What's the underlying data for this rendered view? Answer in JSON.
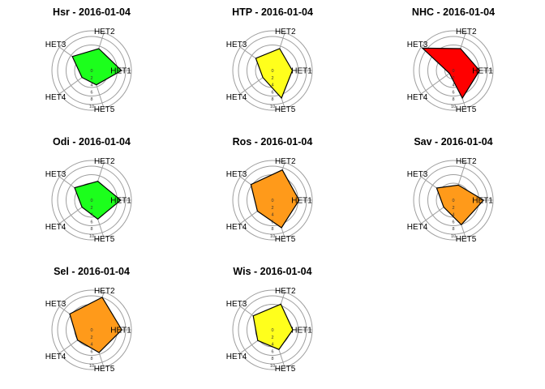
{
  "chart_data": {
    "type": "radar",
    "axes": [
      "HET1",
      "HET2",
      "HET3",
      "HET4",
      "HET5"
    ],
    "ticks": [
      "0",
      "2",
      "4",
      "6",
      "8",
      "10"
    ],
    "rlim": [
      0,
      10
    ],
    "grid": true,
    "palette": {
      "green": "#1CFF1C",
      "yellow": "#FFFF1C",
      "red": "#FF0000",
      "orange": "#FF9A1A"
    },
    "panels": [
      {
        "title": "Hsr - 2016-01-04",
        "color": "#1CFF1C",
        "values": [
          7.5,
          5.8,
          6.0,
          3.0,
          3.8
        ]
      },
      {
        "title": "HTP - 2016-01-04",
        "color": "#FFFF1C",
        "values": [
          5.0,
          5.8,
          5.2,
          3.0,
          7.3
        ]
      },
      {
        "title": "NHC - 2016-01-04",
        "color": "#FF0000",
        "values": [
          6.6,
          5.8,
          9.6,
          1.2,
          7.3
        ]
      },
      {
        "title": "Odi - 2016-01-04",
        "color": "#1CFF1C",
        "values": [
          7.3,
          5.0,
          5.3,
          3.0,
          5.0
        ]
      },
      {
        "title": "Ros - 2016-01-04",
        "color": "#FF9A1A",
        "values": [
          6.7,
          8.0,
          6.7,
          4.7,
          7.3
        ]
      },
      {
        "title": "Sav - 2016-01-04",
        "color": "#FF9A1A",
        "values": [
          7.6,
          4.0,
          5.2,
          3.0,
          6.5
        ]
      },
      {
        "title": "Sel - 2016-01-04",
        "color": "#FF9A1A",
        "values": [
          7.6,
          8.6,
          6.8,
          4.4,
          6.0
        ]
      },
      {
        "title": "Wis - 2016-01-04",
        "color": "#FFFF1C",
        "values": [
          5.1,
          6.8,
          6.0,
          4.6,
          5.2
        ]
      }
    ]
  }
}
